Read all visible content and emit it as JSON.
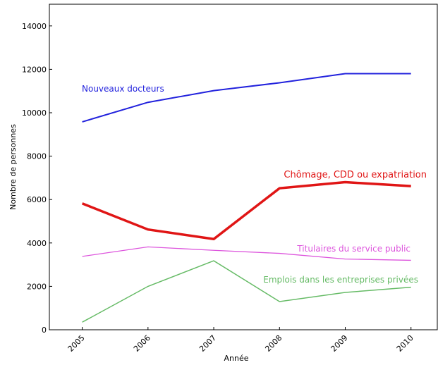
{
  "chart_data": {
    "type": "line",
    "x_label": "Année",
    "y_label": "Nombre de personnes",
    "x": [
      2005,
      2006,
      2007,
      2008,
      2009,
      2010
    ],
    "xlim": [
      2004.5,
      2010.4
    ],
    "xticks": [
      2005,
      2006,
      2007,
      2008,
      2009,
      2010
    ],
    "ylim": [
      0,
      15000
    ],
    "yticks": [
      0,
      2000,
      4000,
      6000,
      8000,
      10000,
      12000,
      14000
    ],
    "series": [
      {
        "name": "Nouveaux docteurs",
        "color": "#2222dd",
        "values": [
          9580,
          10480,
          11020,
          11380,
          11800,
          11800
        ]
      },
      {
        "name": "Chômage, CDD ou expatriation",
        "color": "#e01515",
        "values": [
          5820,
          4620,
          4180,
          6520,
          6800,
          6620
        ]
      },
      {
        "name": "Titulaires du service public",
        "color": "#dd55dd",
        "values": [
          3380,
          3820,
          3660,
          3520,
          3260,
          3200
        ]
      },
      {
        "name": "Emplois dans les entreprises privées",
        "color": "#66bb66",
        "values": [
          350,
          2000,
          3180,
          1300,
          1720,
          1960
        ]
      }
    ]
  }
}
